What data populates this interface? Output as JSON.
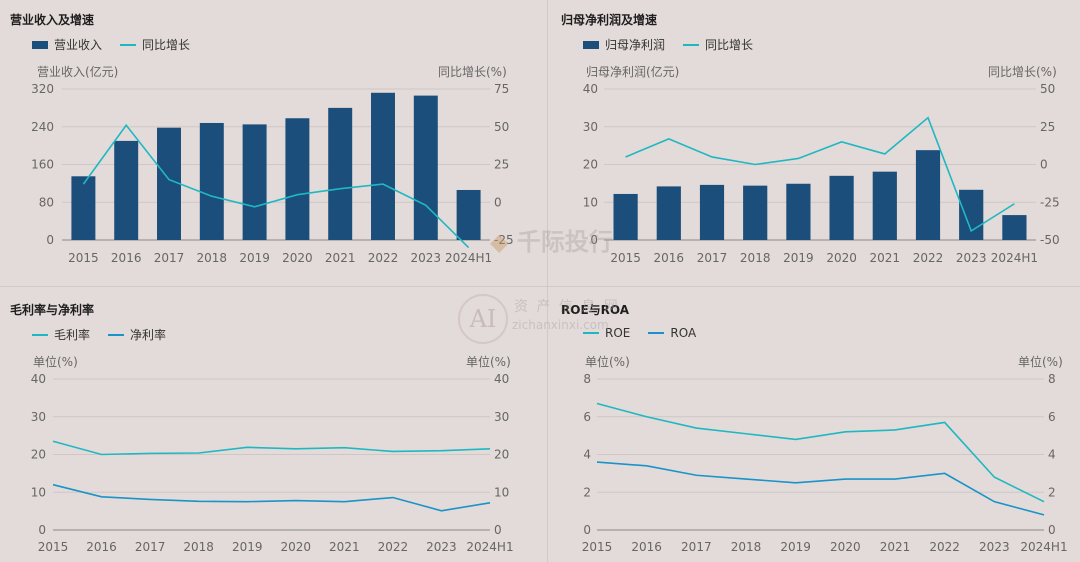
{
  "watermarks": {
    "brand_cn": "千际投行",
    "logo_letters": "AI",
    "assets_cn": "资 产 信 息 网",
    "site": "zichanxinxi.com"
  },
  "colors": {
    "bar": "#1b4e7a",
    "line_teal": "#1fb8c2",
    "line_blue": "#1a93c9",
    "axis": "#666666",
    "grid": "#cfc7c6"
  },
  "chart_data": [
    {
      "id": "revenue",
      "type": "bar",
      "title": "营业收入及增速",
      "legend": [
        "营业收入",
        "同比增长"
      ],
      "ylabel_left": "营业收入(亿元)",
      "ylabel_right": "同比增长(%)",
      "categories": [
        "2015",
        "2016",
        "2017",
        "2018",
        "2019",
        "2020",
        "2021",
        "2022",
        "2023",
        "2024H1"
      ],
      "bars": [
        135,
        210,
        238,
        248,
        245,
        258,
        280,
        312,
        306,
        106
      ],
      "line": [
        12,
        51,
        15,
        4,
        -3,
        5,
        9,
        12,
        -2,
        -30
      ],
      "ylim_left": [
        0,
        320
      ],
      "yticks_left": [
        "0",
        "80",
        "160",
        "240",
        "320"
      ],
      "ylim_right": [
        -25,
        75
      ],
      "yticks_right": [
        "-25",
        "0",
        "25",
        "50",
        "75"
      ]
    },
    {
      "id": "net_profit",
      "type": "bar",
      "title": "归母净利润及增速",
      "legend": [
        "归母净利润",
        "同比增长"
      ],
      "ylabel_left": "归母净利润(亿元)",
      "ylabel_right": "同比增长(%)",
      "categories": [
        "2015",
        "2016",
        "2017",
        "2018",
        "2019",
        "2020",
        "2021",
        "2022",
        "2023",
        "2024H1"
      ],
      "bars": [
        12.2,
        14.2,
        14.6,
        14.4,
        14.9,
        17.0,
        18.1,
        23.8,
        13.3,
        6.6
      ],
      "line": [
        5,
        17,
        5,
        0,
        4,
        15,
        7,
        31,
        -44,
        -26
      ],
      "ylim_left": [
        0,
        40
      ],
      "yticks_left": [
        "0",
        "10",
        "20",
        "30",
        "40"
      ],
      "ylim_right": [
        -50,
        50
      ],
      "yticks_right": [
        "-50",
        "-25",
        "0",
        "25",
        "50"
      ]
    },
    {
      "id": "margins",
      "type": "line",
      "title": "毛利率与净利率",
      "legend": [
        "毛利率",
        "净利率"
      ],
      "ylabel_left": "单位(%)",
      "ylabel_right": "单位(%)",
      "categories": [
        "2015",
        "2016",
        "2017",
        "2018",
        "2019",
        "2020",
        "2021",
        "2022",
        "2023",
        "2024H1"
      ],
      "series": [
        {
          "name": "毛利率",
          "values": [
            23.5,
            20.0,
            20.3,
            20.4,
            21.9,
            21.5,
            21.8,
            20.8,
            21.0,
            21.5
          ]
        },
        {
          "name": "净利率",
          "values": [
            12.0,
            8.8,
            8.1,
            7.6,
            7.5,
            7.8,
            7.5,
            8.6,
            5.1,
            7.2
          ]
        }
      ],
      "ylim": [
        0,
        40
      ],
      "yticks": [
        "0",
        "10",
        "20",
        "30",
        "40"
      ]
    },
    {
      "id": "roe_roa",
      "type": "line",
      "title": "ROE与ROA",
      "legend": [
        "ROE",
        "ROA"
      ],
      "ylabel_left": "单位(%)",
      "ylabel_right": "单位(%)",
      "categories": [
        "2015",
        "2016",
        "2017",
        "2018",
        "2019",
        "2020",
        "2021",
        "2022",
        "2023",
        "2024H1"
      ],
      "series": [
        {
          "name": "ROE",
          "values": [
            6.7,
            6.0,
            5.4,
            5.1,
            4.8,
            5.2,
            5.3,
            5.7,
            2.8,
            1.5
          ]
        },
        {
          "name": "ROA",
          "values": [
            3.6,
            3.4,
            2.9,
            2.7,
            2.5,
            2.7,
            2.7,
            3.0,
            1.5,
            0.8
          ]
        }
      ],
      "ylim": [
        0,
        8
      ],
      "yticks": [
        "0",
        "2",
        "4",
        "6",
        "8"
      ]
    }
  ]
}
